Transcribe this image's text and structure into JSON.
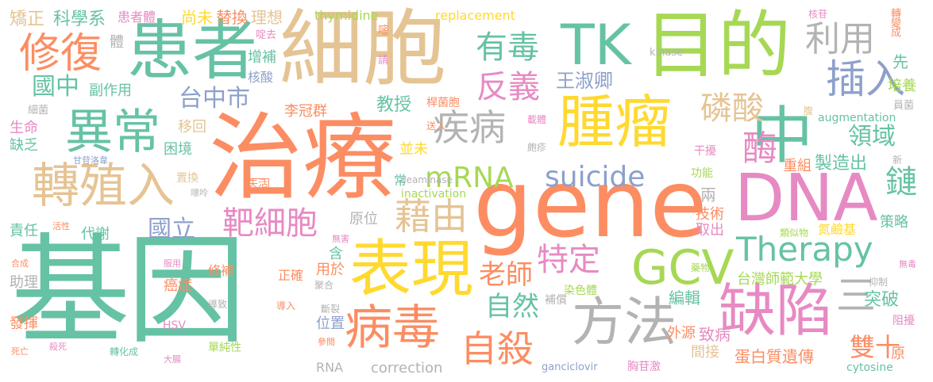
{
  "palette": {
    "teal": "#66c2a5",
    "orange": "#fc8d62",
    "blue": "#8da0cb",
    "pink": "#e78ac3",
    "lime": "#a6d854",
    "yellow": "#ffd92f",
    "tan": "#e5c494",
    "gray": "#b3b3b3"
  },
  "words": [
    {
      "text": "基因",
      "color": "teal"
    },
    {
      "text": "治療",
      "color": "orange"
    },
    {
      "text": "細胞",
      "color": "tan"
    },
    {
      "text": "gene",
      "color": "orange"
    },
    {
      "text": "患者",
      "color": "teal"
    },
    {
      "text": "目的",
      "color": "lime"
    },
    {
      "text": "DNA",
      "color": "pink"
    },
    {
      "text": "腫瘤",
      "color": "yellow"
    },
    {
      "text": "中",
      "color": "teal"
    },
    {
      "text": "表現",
      "color": "yellow"
    },
    {
      "text": "方法",
      "color": "gray"
    },
    {
      "text": "缺陷",
      "color": "pink"
    },
    {
      "text": "病毒",
      "color": "orange"
    },
    {
      "text": "GCV",
      "color": "lime"
    },
    {
      "text": "TK",
      "color": "teal"
    },
    {
      "text": "轉殖入",
      "color": "tan"
    },
    {
      "text": "異常",
      "color": "teal"
    },
    {
      "text": "修復",
      "color": "orange"
    },
    {
      "text": "Therapy",
      "color": "teal"
    },
    {
      "text": "suicide",
      "color": "blue"
    },
    {
      "text": "mRNA",
      "color": "lime"
    },
    {
      "text": "插入",
      "color": "blue"
    },
    {
      "text": "利用",
      "color": "gray"
    },
    {
      "text": "酶",
      "color": "pink"
    },
    {
      "text": "磷酸",
      "color": "tan"
    },
    {
      "text": "有毒",
      "color": "teal"
    },
    {
      "text": "反義",
      "color": "pink"
    },
    {
      "text": "疾病",
      "color": "gray"
    },
    {
      "text": "自殺",
      "color": "orange"
    },
    {
      "text": "靶細胞",
      "color": "pink"
    },
    {
      "text": "藉由",
      "color": "tan"
    },
    {
      "text": "特定",
      "color": "pink"
    },
    {
      "text": "三",
      "color": "gray"
    },
    {
      "text": "自然",
      "color": "teal"
    },
    {
      "text": "老師",
      "color": "orange"
    },
    {
      "text": "鏈",
      "color": "teal"
    },
    {
      "text": "雙十",
      "color": "orange"
    },
    {
      "text": "領域",
      "color": "teal"
    },
    {
      "text": "台中市",
      "color": "blue"
    },
    {
      "text": "王淑卿",
      "color": "blue"
    },
    {
      "text": "國中",
      "color": "teal"
    },
    {
      "text": "國立",
      "color": "blue"
    },
    {
      "text": "科學系",
      "color": "teal"
    },
    {
      "text": "矯正",
      "color": "tan"
    },
    {
      "text": "患者體",
      "color": "pink"
    },
    {
      "text": "尚未",
      "color": "yellow"
    },
    {
      "text": "替換",
      "color": "orange"
    },
    {
      "text": "理想",
      "color": "tan"
    },
    {
      "text": "thymidine",
      "color": "lime"
    },
    {
      "text": "replacement",
      "color": "yellow"
    },
    {
      "text": "核苷",
      "color": "pink"
    },
    {
      "text": "轉變成",
      "color": "orange"
    },
    {
      "text": "kinase",
      "color": "gray"
    },
    {
      "text": "先",
      "color": "teal"
    },
    {
      "text": "培養",
      "color": "lime"
    },
    {
      "text": "員菌",
      "color": "gray"
    },
    {
      "text": "腹",
      "color": "tan"
    },
    {
      "text": "augmentation",
      "color": "teal"
    },
    {
      "text": "製造出",
      "color": "teal"
    },
    {
      "text": "重組",
      "color": "orange"
    },
    {
      "text": "干擾",
      "color": "pink"
    },
    {
      "text": "功能",
      "color": "lime"
    },
    {
      "text": "新",
      "color": "gray"
    },
    {
      "text": "策略",
      "color": "teal"
    },
    {
      "text": "技術",
      "color": "orange"
    },
    {
      "text": "氮鹼基",
      "color": "yellow"
    },
    {
      "text": "取出",
      "color": "pink"
    },
    {
      "text": "類似物",
      "color": "lime"
    },
    {
      "text": "兩",
      "color": "gray"
    },
    {
      "text": "突破",
      "color": "teal"
    },
    {
      "text": "編輯",
      "color": "teal"
    },
    {
      "text": "台灣師範大學",
      "color": "lime"
    },
    {
      "text": "致病",
      "color": "pink"
    },
    {
      "text": "外源",
      "color": "orange"
    },
    {
      "text": "間接",
      "color": "tan"
    },
    {
      "text": "蛋白質遺傳",
      "color": "orange"
    },
    {
      "text": "阻擾",
      "color": "pink"
    },
    {
      "text": "無毒",
      "color": "pink"
    },
    {
      "text": "抑制",
      "color": "gray"
    },
    {
      "text": "藥物",
      "color": "lime"
    },
    {
      "text": "原",
      "color": "orange"
    },
    {
      "text": "cytosine",
      "color": "teal"
    },
    {
      "text": "胸苷激",
      "color": "pink"
    },
    {
      "text": "ganciclovir",
      "color": "blue"
    },
    {
      "text": "補償",
      "color": "gray"
    },
    {
      "text": "染色體",
      "color": "lime"
    },
    {
      "text": "斷裂",
      "color": "gray"
    },
    {
      "text": "參閱",
      "color": "orange"
    },
    {
      "text": "位置",
      "color": "blue"
    },
    {
      "text": "RNA",
      "color": "gray"
    },
    {
      "text": "correction",
      "color": "gray"
    },
    {
      "text": "聚合",
      "color": "gray"
    },
    {
      "text": "用於",
      "color": "orange"
    },
    {
      "text": "無害",
      "color": "pink"
    },
    {
      "text": "含",
      "color": "teal"
    },
    {
      "text": "原位",
      "color": "gray"
    },
    {
      "text": "常",
      "color": "teal"
    },
    {
      "text": "inactivation",
      "color": "lime"
    },
    {
      "text": "deaminase",
      "color": "gray"
    },
    {
      "text": "並未",
      "color": "yellow"
    },
    {
      "text": "送入",
      "color": "orange"
    },
    {
      "text": "皰疹",
      "color": "gray"
    },
    {
      "text": "載體",
      "color": "pink"
    },
    {
      "text": "桿菌胞",
      "color": "orange"
    },
    {
      "text": "教授",
      "color": "teal"
    },
    {
      "text": "李冠群",
      "color": "orange"
    },
    {
      "text": "增補",
      "color": "teal"
    },
    {
      "text": "核酸",
      "color": "blue"
    },
    {
      "text": "啶去",
      "color": "pink"
    },
    {
      "text": "嘧",
      "color": "orange"
    },
    {
      "text": "請",
      "color": "pink"
    },
    {
      "text": "體",
      "color": "gray"
    },
    {
      "text": "副作用",
      "color": "teal"
    },
    {
      "text": "細菌",
      "color": "gray"
    },
    {
      "text": "生命",
      "color": "pink"
    },
    {
      "text": "缺乏",
      "color": "teal"
    },
    {
      "text": "困境",
      "color": "teal"
    },
    {
      "text": "移回",
      "color": "tan"
    },
    {
      "text": "甘苷洛韋",
      "color": "blue"
    },
    {
      "text": "置換",
      "color": "tan"
    },
    {
      "text": "嘌呤",
      "color": "gray"
    },
    {
      "text": "失活",
      "color": "orange"
    },
    {
      "text": "責任",
      "color": "teal"
    },
    {
      "text": "活性",
      "color": "orange"
    },
    {
      "text": "代謝",
      "color": "teal"
    },
    {
      "text": "合成",
      "color": "orange"
    },
    {
      "text": "服用",
      "color": "pink"
    },
    {
      "text": "助理",
      "color": "gray"
    },
    {
      "text": "修補",
      "color": "orange"
    },
    {
      "text": "正確",
      "color": "orange"
    },
    {
      "text": "癌症",
      "color": "orange"
    },
    {
      "text": "導致",
      "color": "gray"
    },
    {
      "text": "導入",
      "color": "orange"
    },
    {
      "text": "發揮",
      "color": "orange"
    },
    {
      "text": "HSV",
      "color": "pink"
    },
    {
      "text": "單純性",
      "color": "lime"
    },
    {
      "text": "死亡",
      "color": "orange"
    },
    {
      "text": "殺死",
      "color": "pink"
    },
    {
      "text": "轉化成",
      "color": "teal"
    },
    {
      "text": "大腸",
      "color": "pink"
    },
    {
      "text": "胺",
      "color": "pink"
    }
  ]
}
